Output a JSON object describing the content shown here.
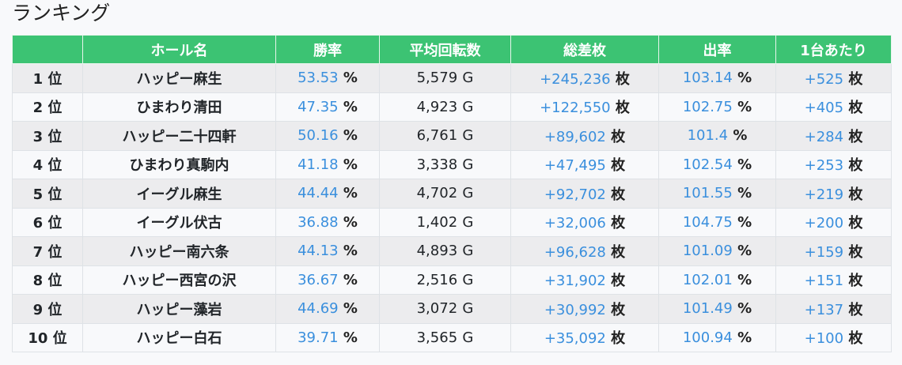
{
  "title": "ランキング",
  "colors": {
    "header": "#3cc373",
    "value": "#3a8fdd"
  },
  "headers": [
    "",
    "ホール名",
    "勝率",
    "平均回転数",
    "総差枚",
    "出率",
    "1台あたり"
  ],
  "units": {
    "rank": "位",
    "percent": "%",
    "games": "G",
    "coins": "枚"
  },
  "rows": [
    {
      "rank": "1",
      "hall": "ハッピー麻生",
      "win_rate": "53.53",
      "avg_spins": "5,579",
      "total_diff": "+245,236",
      "payout": "103.14",
      "per_machine": "+525"
    },
    {
      "rank": "2",
      "hall": "ひまわり清田",
      "win_rate": "47.35",
      "avg_spins": "4,923",
      "total_diff": "+122,550",
      "payout": "102.75",
      "per_machine": "+405"
    },
    {
      "rank": "3",
      "hall": "ハッピー二十四軒",
      "win_rate": "50.16",
      "avg_spins": "6,761",
      "total_diff": "+89,602",
      "payout": "101.4",
      "per_machine": "+284"
    },
    {
      "rank": "4",
      "hall": "ひまわり真駒内",
      "win_rate": "41.18",
      "avg_spins": "3,338",
      "total_diff": "+47,495",
      "payout": "102.54",
      "per_machine": "+253"
    },
    {
      "rank": "5",
      "hall": "イーグル麻生",
      "win_rate": "44.44",
      "avg_spins": "4,702",
      "total_diff": "+92,702",
      "payout": "101.55",
      "per_machine": "+219"
    },
    {
      "rank": "6",
      "hall": "イーグル伏古",
      "win_rate": "36.88",
      "avg_spins": "1,402",
      "total_diff": "+32,006",
      "payout": "104.75",
      "per_machine": "+200"
    },
    {
      "rank": "7",
      "hall": "ハッピー南六条",
      "win_rate": "44.13",
      "avg_spins": "4,893",
      "total_diff": "+96,628",
      "payout": "101.09",
      "per_machine": "+159"
    },
    {
      "rank": "8",
      "hall": "ハッピー西宮の沢",
      "win_rate": "36.67",
      "avg_spins": "2,516",
      "total_diff": "+31,902",
      "payout": "102.01",
      "per_machine": "+151"
    },
    {
      "rank": "9",
      "hall": "ハッピー藻岩",
      "win_rate": "44.69",
      "avg_spins": "3,072",
      "total_diff": "+30,992",
      "payout": "101.49",
      "per_machine": "+137"
    },
    {
      "rank": "10",
      "hall": "ハッピー白石",
      "win_rate": "39.71",
      "avg_spins": "3,565",
      "total_diff": "+35,092",
      "payout": "100.94",
      "per_machine": "+100"
    }
  ]
}
